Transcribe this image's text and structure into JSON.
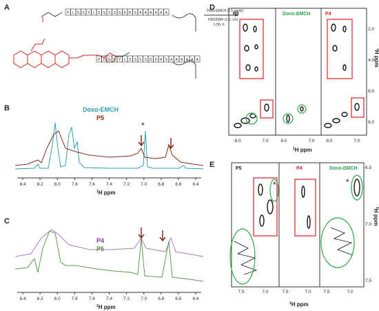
{
  "panel_a": {
    "label": "A",
    "sequence": [
      "P",
      "L",
      "G",
      "S",
      "Y",
      "L",
      "S",
      "S",
      "S",
      "S",
      "G",
      "K",
      "R",
      "S",
      "A",
      "A",
      "A",
      "A",
      "A",
      "A"
    ],
    "reagent": "Doxo-EMCH (1.5 equiv)",
    "solvent": "H2O/DMF (1:1, v/v)",
    "conditions": "1.5h, rt"
  },
  "panel_b": {
    "label": "B",
    "legend": [
      "Doxo-EMCH",
      "P5"
    ],
    "asterisk": "*",
    "xticks": [
      "8.4",
      "8.2",
      "8.0",
      "7.8",
      "7.6",
      "7.4",
      "7.2",
      "7.0",
      "6.8",
      "6.6",
      "6.4"
    ],
    "axis_label": {
      "sup": "1",
      "text": "H ppm"
    }
  },
  "panel_c": {
    "label": "C",
    "legend": [
      "P4",
      "P5"
    ],
    "xticks": [
      "8.4",
      "8.2",
      "8.0",
      "7.8",
      "7.6",
      "7.4",
      "7.2",
      "7.0",
      "6.8",
      "6.6",
      "6.4"
    ],
    "axis_label": {
      "sup": "1",
      "text": "H ppm"
    }
  },
  "panel_d": {
    "label": "D",
    "subpanels": [
      "P5",
      "Doxo-EMCH",
      "P4"
    ],
    "xticks": [
      "8.0",
      "7.0"
    ],
    "yticks": [
      "2.0",
      "4.0",
      "6.0",
      "8.0"
    ],
    "axis_label": {
      "sup": "1",
      "text": "H ppm"
    }
  },
  "panel_e": {
    "label": "E",
    "subpanels": [
      "P5",
      "P4",
      "Doxo-EMCH"
    ],
    "xticks": [
      "7.5",
      "7.0"
    ],
    "yticks": [
      "6.5",
      "7.0",
      "7.5"
    ],
    "asterisk": "*",
    "axis_label": {
      "sup": "1",
      "text": "H ppm"
    }
  }
}
